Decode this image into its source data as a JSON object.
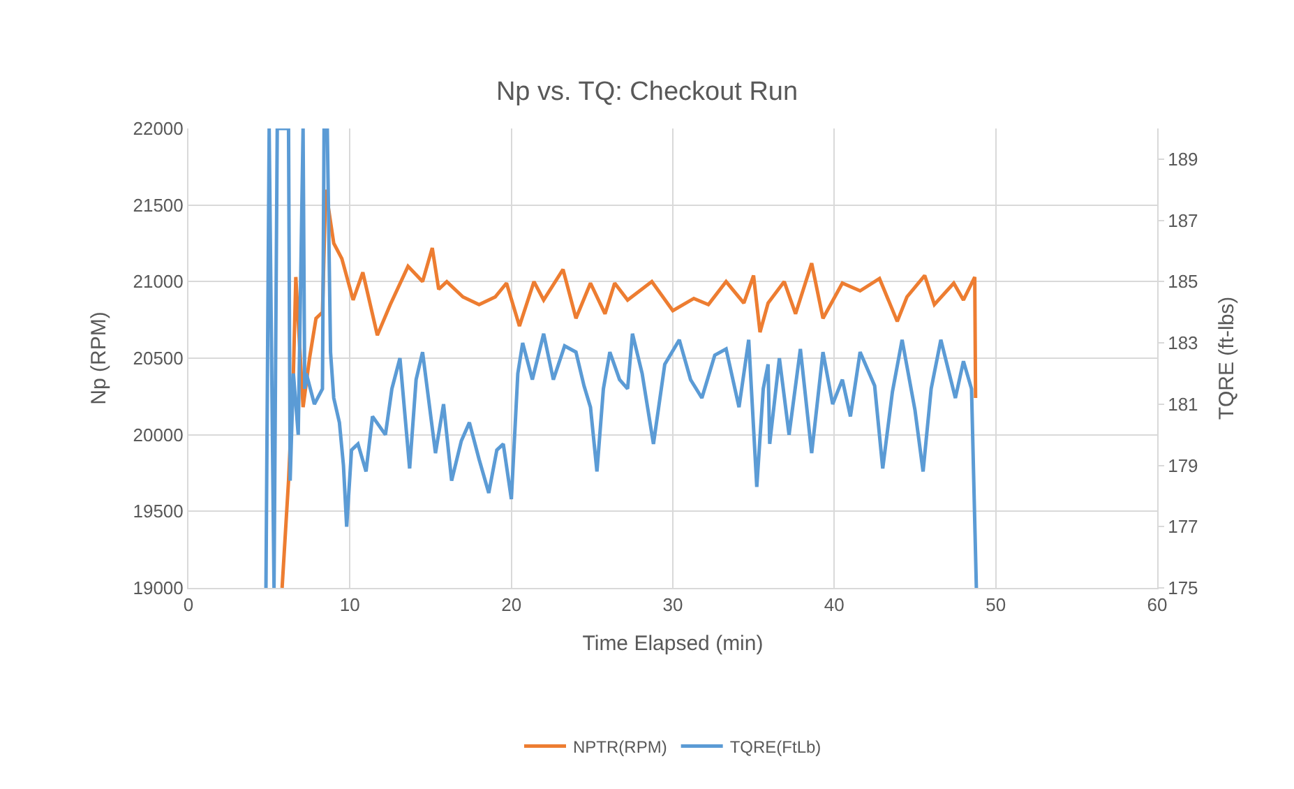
{
  "chart_data": {
    "type": "line",
    "title": "Np vs. TQ: Checkout Run",
    "xlabel": "Time Elapsed (min)",
    "ylabel": "Np (RPM)",
    "y2label": "TQRE (ft-lbs)",
    "xlim": [
      0,
      60
    ],
    "xticks": [
      0,
      10,
      20,
      30,
      40,
      50,
      60
    ],
    "ylim": [
      19000,
      22000
    ],
    "yticks": [
      19000,
      19500,
      20000,
      20500,
      21000,
      21500,
      22000
    ],
    "y2lim": [
      175,
      190
    ],
    "y2ticks": [
      175,
      177,
      179,
      181,
      183,
      185,
      187,
      189
    ],
    "grid": true,
    "legend": "bottom",
    "line_style": "solid",
    "series": [
      {
        "name": "NPTR(RPM)",
        "color": "#ed7d31",
        "x": [
          5.8,
          6.2,
          6.5,
          6.65,
          7.1,
          7.5,
          7.9,
          8.3,
          8.5,
          9.0,
          9.5,
          10.2,
          10.8,
          11.7,
          12.5,
          13.6,
          14.5,
          15.1,
          15.5,
          16.0,
          17.0,
          18.0,
          19.0,
          19.7,
          20.5,
          21.4,
          22.0,
          23.2,
          24.0,
          24.9,
          25.8,
          26.4,
          27.2,
          28.7,
          30.0,
          31.3,
          32.2,
          33.3,
          34.4,
          35.0,
          35.4,
          35.9,
          36.9,
          37.6,
          38.6,
          39.3,
          40.5,
          41.6,
          42.8,
          43.9,
          44.5,
          45.6,
          46.2,
          47.4,
          48.0,
          48.7,
          48.75
        ],
        "values": [
          19000,
          19700,
          20400,
          21030,
          20180,
          20500,
          20760,
          20800,
          21600,
          21250,
          21150,
          20880,
          21060,
          20650,
          20850,
          21100,
          21000,
          21220,
          20950,
          21000,
          20900,
          20850,
          20900,
          20990,
          20710,
          21000,
          20880,
          21080,
          20760,
          20990,
          20790,
          20990,
          20880,
          21000,
          20810,
          20890,
          20850,
          21000,
          20860,
          21040,
          20670,
          20860,
          21000,
          20790,
          21120,
          20760,
          20990,
          20940,
          21020,
          20740,
          20900,
          21040,
          20850,
          20990,
          20880,
          21030,
          20240
        ]
      },
      {
        "name": "TQRE(FtLb)",
        "color": "#5b9bd5",
        "axis": "y2",
        "x": [
          4.8,
          5.0,
          5.3,
          5.5,
          6.1,
          6.2,
          6.3,
          6.5,
          6.8,
          7.1,
          7.2,
          7.3,
          7.8,
          8.3,
          8.4,
          8.6,
          8.8,
          9.0,
          9.35,
          9.6,
          9.8,
          10.1,
          10.5,
          11.0,
          11.4,
          12.2,
          12.6,
          13.1,
          13.7,
          14.1,
          14.5,
          15.3,
          15.8,
          16.3,
          16.9,
          17.4,
          18.0,
          18.6,
          19.1,
          19.5,
          20.0,
          20.4,
          20.7,
          21.3,
          22.0,
          22.6,
          23.3,
          24.0,
          24.5,
          24.9,
          25.3,
          25.7,
          26.1,
          26.7,
          27.2,
          27.5,
          28.1,
          28.8,
          29.5,
          30.4,
          31.1,
          31.8,
          32.6,
          33.3,
          34.1,
          34.7,
          35.2,
          35.6,
          35.9,
          36.0,
          36.6,
          37.2,
          37.9,
          38.6,
          39.3,
          39.9,
          40.5,
          41.0,
          41.6,
          42.5,
          43.0,
          43.6,
          44.2,
          45.0,
          45.5,
          46.0,
          46.6,
          47.5,
          48.0,
          48.5,
          48.8
        ],
        "values": [
          175,
          190,
          175,
          190,
          190,
          190,
          178.5,
          182,
          180,
          190,
          181.5,
          182,
          181,
          181.5,
          190,
          190,
          182.7,
          181.2,
          180.4,
          179.0,
          177,
          179.5,
          179.7,
          178.8,
          180.6,
          180,
          181.5,
          182.5,
          178.9,
          181.8,
          182.7,
          179.4,
          181,
          178.5,
          179.8,
          180.4,
          179.2,
          178.1,
          179.5,
          179.7,
          177.9,
          182,
          183,
          181.8,
          183.3,
          181.8,
          182.9,
          182.7,
          181.6,
          180.9,
          178.8,
          181.5,
          182.7,
          181.8,
          181.5,
          183.3,
          182,
          179.7,
          182.3,
          183.1,
          181.8,
          181.2,
          182.6,
          182.8,
          180.9,
          183.1,
          178.3,
          181.5,
          182.3,
          179.7,
          182.5,
          180,
          182.8,
          179.4,
          182.7,
          181,
          181.8,
          180.6,
          182.7,
          181.6,
          178.9,
          181.4,
          183.1,
          180.8,
          178.8,
          181.5,
          183.1,
          181.2,
          182.4,
          181.5,
          175
        ]
      }
    ]
  }
}
